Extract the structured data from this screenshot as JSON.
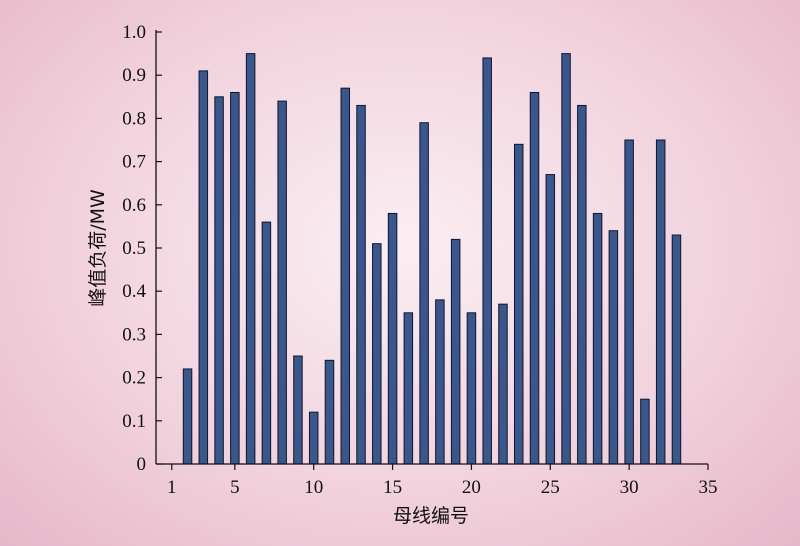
{
  "chart_data": {
    "type": "bar",
    "title": "",
    "xlabel": "母线编号",
    "ylabel": "峰值负荷/MW",
    "xlim": [
      0,
      35
    ],
    "ylim": [
      0,
      1.0
    ],
    "x_ticks": [
      1,
      5,
      10,
      15,
      20,
      25,
      30,
      35
    ],
    "y_ticks": [
      "0",
      "0.1",
      "0.2",
      "0.3",
      "0.4",
      "0.5",
      "0.6",
      "0.7",
      "0.8",
      "0.9",
      "1.0"
    ],
    "grid": false,
    "bar_color": "#3b5688",
    "categories": [
      2,
      3,
      4,
      5,
      6,
      7,
      8,
      9,
      10,
      11,
      12,
      13,
      14,
      15,
      16,
      17,
      18,
      19,
      20,
      21,
      22,
      23,
      24,
      25,
      26,
      27,
      28,
      29,
      30,
      31,
      32,
      33
    ],
    "values": [
      0.22,
      0.91,
      0.85,
      0.86,
      0.95,
      0.56,
      0.84,
      0.25,
      0.12,
      0.24,
      0.87,
      0.83,
      0.51,
      0.58,
      0.35,
      0.79,
      0.38,
      0.52,
      0.35,
      0.94,
      0.37,
      0.74,
      0.86,
      0.67,
      0.95,
      0.83,
      0.58,
      0.54,
      0.75,
      0.15,
      0.75,
      0.53
    ]
  }
}
